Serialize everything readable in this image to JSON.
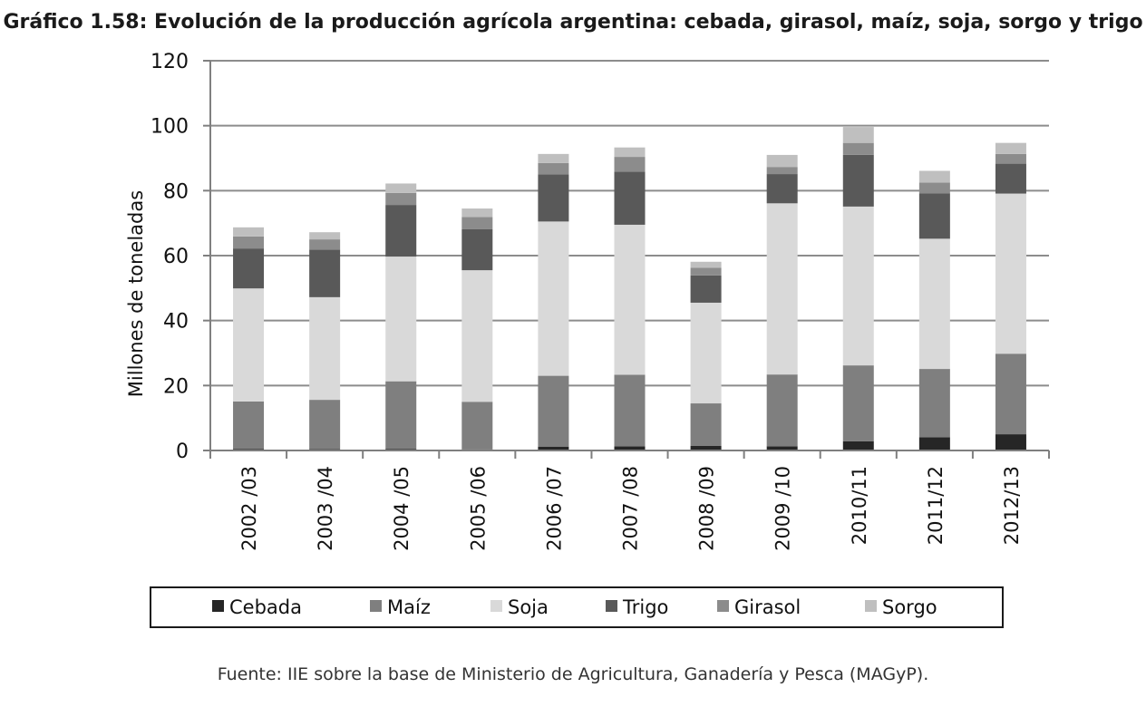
{
  "page": {
    "title": "Gráfico 1.58: Evolución de la producción agrícola argentina: cebada, girasol, maíz, soja, sorgo y trigo",
    "source": "Fuente: IIE sobre la base de Ministerio de Agricultura, Ganadería y Pesca (MAGyP)."
  },
  "chart_data": {
    "type": "bar",
    "stacked": true,
    "title": "Gráfico 1.58: Evolución de la producción agrícola argentina: cebada, girasol, maíz, soja, sorgo y trigo",
    "xlabel": "",
    "ylabel": "Millones de toneladas",
    "ylim": [
      0,
      120
    ],
    "yticks": [
      0,
      20,
      40,
      60,
      80,
      100,
      120
    ],
    "grid": true,
    "legend_position": "bottom",
    "categories": [
      "2002 /03",
      "2003 /04",
      "2004 /05",
      "2005 /06",
      "2006 /07",
      "2007 /08",
      "2008 /09",
      "2009 /10",
      "2010/11",
      "2011/12",
      "2012/13"
    ],
    "series": [
      {
        "name": "Cebada",
        "color": "#262626",
        "values": [
          0.5,
          0.4,
          0.5,
          0.3,
          1.2,
          1.3,
          1.4,
          1.3,
          2.8,
          4.1,
          5.0
        ]
      },
      {
        "name": "Maíz",
        "color": "#7f7f7f",
        "values": [
          14.6,
          15.2,
          20.8,
          14.7,
          21.8,
          22.0,
          13.1,
          22.1,
          23.4,
          21.0,
          24.8
        ]
      },
      {
        "name": "Soja",
        "color": "#d9d9d9",
        "values": [
          34.8,
          31.6,
          38.4,
          40.5,
          47.5,
          46.2,
          31.0,
          52.7,
          48.9,
          40.1,
          49.3
        ]
      },
      {
        "name": "Trigo",
        "color": "#595959",
        "values": [
          12.3,
          14.6,
          15.9,
          12.6,
          14.5,
          16.3,
          8.4,
          9.0,
          15.9,
          14.0,
          9.2
        ]
      },
      {
        "name": "Girasol",
        "color": "#8c8c8c",
        "values": [
          3.7,
          3.2,
          3.7,
          3.8,
          3.5,
          4.6,
          2.4,
          2.2,
          3.7,
          3.3,
          3.0
        ]
      },
      {
        "name": "Sorgo",
        "color": "#bfbfbf",
        "values": [
          2.8,
          2.2,
          2.9,
          2.6,
          2.8,
          2.9,
          1.8,
          3.7,
          4.9,
          3.6,
          3.4
        ]
      }
    ]
  }
}
